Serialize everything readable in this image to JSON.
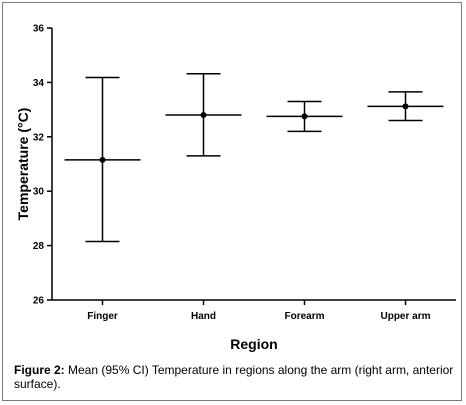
{
  "chart_data": {
    "type": "errorbar",
    "xlabel": "Region",
    "ylabel": "Temperature (°C)",
    "ylim": [
      26,
      36
    ],
    "yticks": [
      26,
      28,
      30,
      32,
      34,
      36
    ],
    "categories": [
      "Finger",
      "Hand",
      "Forearm",
      "Upper arm"
    ],
    "mean": [
      31.15,
      32.8,
      32.75,
      33.12
    ],
    "ci_lower": [
      28.15,
      31.3,
      32.2,
      32.6
    ],
    "ci_upper": [
      34.18,
      34.32,
      33.3,
      33.65
    ],
    "grid": false,
    "legend": "none",
    "colors": {
      "line": "#000000",
      "marker": "#000000"
    }
  },
  "caption": {
    "label": "Figure 2:",
    "text": " Mean (95% CI) Temperature in regions along the arm (right arm, anterior surface)."
  }
}
